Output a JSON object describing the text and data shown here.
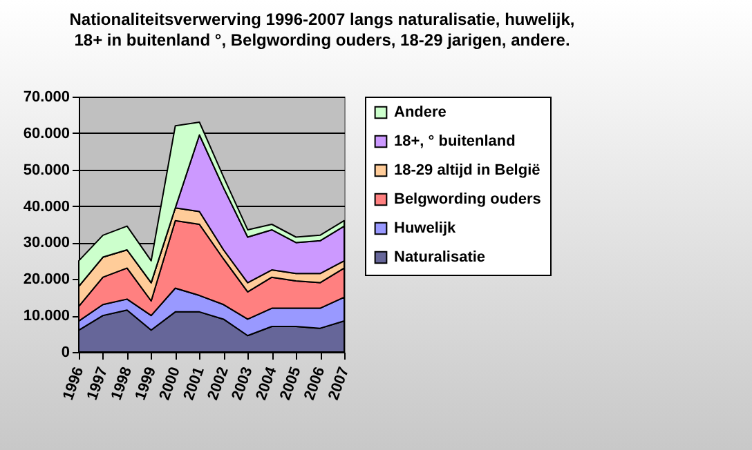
{
  "chart_data": {
    "type": "area",
    "stacked": true,
    "title": "Nationaliteitsverwerving 1996-2007 langs naturalisatie, huwelijk, 18+ in buitenland °, Belgwording ouders, 18-29 jarigen, andere.",
    "categories": [
      "1996",
      "1997",
      "1998",
      "1999",
      "2000",
      "2001",
      "2002",
      "2003",
      "2004",
      "2005",
      "2006",
      "2007"
    ],
    "series": [
      {
        "name": "Naturalisatie",
        "color": "#666699",
        "values": [
          6000,
          10000,
          11500,
          6000,
          11000,
          11000,
          9000,
          4500,
          7000,
          7000,
          6500,
          8500
        ]
      },
      {
        "name": "Huwelijk",
        "color": "#9999ff",
        "values": [
          2500,
          3000,
          3000,
          4000,
          6500,
          4500,
          4000,
          4500,
          5000,
          5000,
          5500,
          6500
        ]
      },
      {
        "name": "Belgwording ouders",
        "color": "#ff8080",
        "values": [
          4000,
          7500,
          8500,
          4000,
          18500,
          19500,
          12500,
          7500,
          8500,
          7500,
          7000,
          8000
        ]
      },
      {
        "name": "18-29 altijd in België",
        "color": "#ffcc99",
        "values": [
          5500,
          5500,
          5000,
          5000,
          3500,
          3500,
          2500,
          2500,
          2000,
          2000,
          2500,
          2000
        ]
      },
      {
        "name": "18+, ° buitenland",
        "color": "#cc99ff",
        "values": [
          0,
          0,
          0,
          0,
          0,
          21000,
          17000,
          12500,
          11000,
          8500,
          9000,
          9500
        ]
      },
      {
        "name": "Andere",
        "color": "#ccffcc",
        "values": [
          7000,
          6000,
          6500,
          6000,
          22500,
          3500,
          3000,
          2000,
          1500,
          1500,
          1500,
          1500
        ]
      }
    ],
    "ylim": [
      0,
      70000
    ],
    "yticks": [
      {
        "value": 0,
        "label": "0"
      },
      {
        "value": 10000,
        "label": "10.000"
      },
      {
        "value": 20000,
        "label": "20.000"
      },
      {
        "value": 30000,
        "label": "30.000"
      },
      {
        "value": 40000,
        "label": "40.000"
      },
      {
        "value": 50000,
        "label": "50.000"
      },
      {
        "value": 60000,
        "label": "60.000"
      },
      {
        "value": 70000,
        "label": "70.000"
      }
    ],
    "grid": "y",
    "legend": "right"
  }
}
